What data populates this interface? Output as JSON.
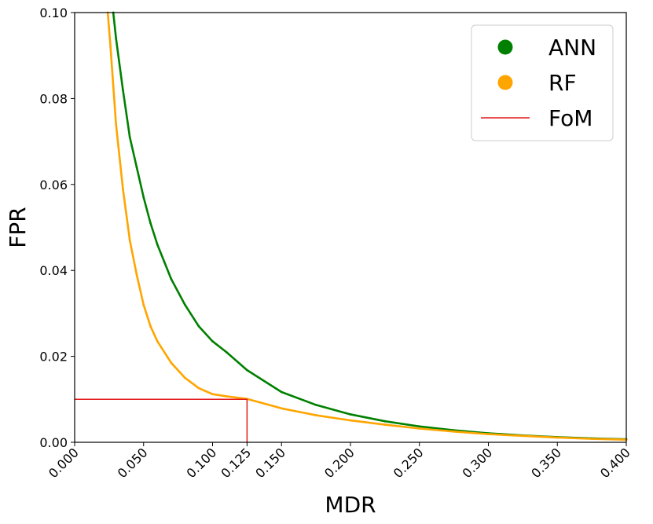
{
  "chart_data": {
    "type": "scatter",
    "title": "",
    "xlabel": "MDR",
    "ylabel": "FPR",
    "xlim": [
      0.0,
      0.4
    ],
    "ylim": [
      0.0,
      0.1
    ],
    "xticks": [
      0.0,
      0.05,
      0.1,
      0.125,
      0.15,
      0.2,
      0.25,
      0.3,
      0.35,
      0.4
    ],
    "xtick_labels": [
      "0.000",
      "0.050",
      "0.100",
      "0.125",
      "0.150",
      "0.200",
      "0.250",
      "0.300",
      "0.350",
      "0.400"
    ],
    "yticks": [
      0.0,
      0.02,
      0.04,
      0.06,
      0.08,
      0.1
    ],
    "ytick_labels": [
      "0.00",
      "0.02",
      "0.04",
      "0.06",
      "0.08",
      "0.10"
    ],
    "grid": false,
    "legend_position": "top-right",
    "series": [
      {
        "name": "ANN",
        "color": "#008000",
        "marker": "circle",
        "x": [
          0.028,
          0.03,
          0.035,
          0.04,
          0.045,
          0.05,
          0.055,
          0.06,
          0.065,
          0.07,
          0.08,
          0.09,
          0.1,
          0.11,
          0.125,
          0.15,
          0.175,
          0.2,
          0.225,
          0.25,
          0.275,
          0.3,
          0.325,
          0.35,
          0.375,
          0.4
        ],
        "y": [
          0.1,
          0.094,
          0.082,
          0.071,
          0.064,
          0.057,
          0.051,
          0.046,
          0.042,
          0.038,
          0.032,
          0.027,
          0.0235,
          0.021,
          0.0168,
          0.0117,
          0.0087,
          0.0065,
          0.0049,
          0.0037,
          0.0028,
          0.0021,
          0.0016,
          0.0012,
          0.0009,
          0.0007
        ]
      },
      {
        "name": "RF",
        "color": "#FFA500",
        "marker": "circle",
        "x": [
          0.024,
          0.026,
          0.03,
          0.035,
          0.04,
          0.045,
          0.05,
          0.055,
          0.06,
          0.07,
          0.08,
          0.09,
          0.1,
          0.11,
          0.125,
          0.15,
          0.175,
          0.2,
          0.225,
          0.25,
          0.275,
          0.3,
          0.325,
          0.35,
          0.375,
          0.4
        ],
        "y": [
          0.1,
          0.092,
          0.074,
          0.059,
          0.047,
          0.039,
          0.032,
          0.027,
          0.0235,
          0.0185,
          0.015,
          0.0126,
          0.0112,
          0.0107,
          0.0101,
          0.0079,
          0.0063,
          0.0051,
          0.0041,
          0.0032,
          0.0025,
          0.0019,
          0.0015,
          0.0011,
          0.0008,
          0.0006
        ]
      }
    ],
    "reference_lines": [
      {
        "name": "FoM",
        "color": "#e41a1c",
        "points": [
          [
            0.0,
            0.01
          ],
          [
            0.125,
            0.01
          ],
          [
            0.125,
            0.0
          ]
        ]
      }
    ]
  }
}
